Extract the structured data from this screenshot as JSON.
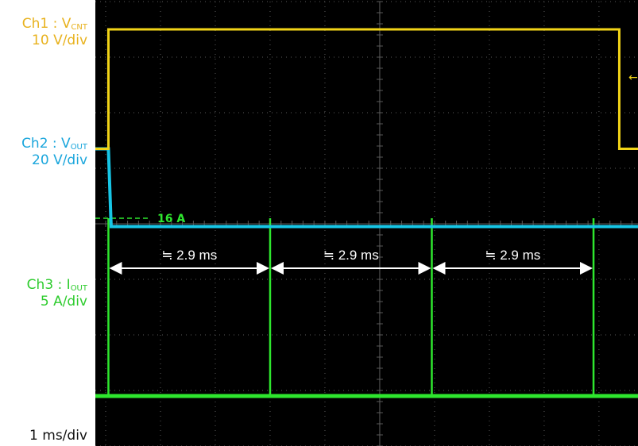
{
  "colors": {
    "background": "#000000",
    "grid": "#5a5a5a",
    "ch1": "#f2d417",
    "ch2": "#17c6e6",
    "ch3": "#2ee62e",
    "annotation": "#ffffff",
    "ch1_label": "#e8b21e",
    "ch2_label": "#1aa6dc",
    "ch3_label": "#2ecc2e"
  },
  "channels": {
    "ch1": {
      "prefix": "Ch1 : V",
      "sub": "CNT",
      "scale": "10 V/div"
    },
    "ch2": {
      "prefix": "Ch2 : V",
      "sub": "OUT",
      "scale": "20 V/div"
    },
    "ch3": {
      "prefix": "Ch3 : I",
      "sub": "OUT",
      "scale": "5 A/div"
    }
  },
  "timebase": "1 ms/div",
  "chart_data": {
    "type": "line",
    "grid": {
      "x_divisions": 10,
      "y_divisions": 8
    },
    "x_unit": "ms",
    "time_window_ms": [
      0,
      10
    ],
    "series": [
      {
        "key": "ch1",
        "x": [
          0,
          0.05,
          0.05,
          9.37,
          9.37,
          10
        ],
        "y_div": [
          5.35,
          5.35,
          7.5,
          7.5,
          5.35,
          5.35
        ]
      },
      {
        "key": "ch2",
        "x": [
          0,
          0.05,
          0.1,
          10
        ],
        "y_div": [
          5.35,
          5.35,
          3.95,
          3.95
        ]
      },
      {
        "key": "ch3",
        "baseline_div": 0.9,
        "pulses_ms": [
          0.05,
          3.0,
          5.95,
          8.9
        ],
        "pulse_peak_A": 16,
        "pulse_width_ms": 0.02
      }
    ],
    "annotations": {
      "peak_label": "16 A",
      "intervals": [
        {
          "label": "≒ 2.9 ms",
          "from_ms": 0.05,
          "to_ms": 3.0
        },
        {
          "label": "≒ 2.9 ms",
          "from_ms": 3.0,
          "to_ms": 5.95
        },
        {
          "label": "≒ 2.9 ms",
          "from_ms": 5.95,
          "to_ms": 8.9
        }
      ]
    }
  }
}
